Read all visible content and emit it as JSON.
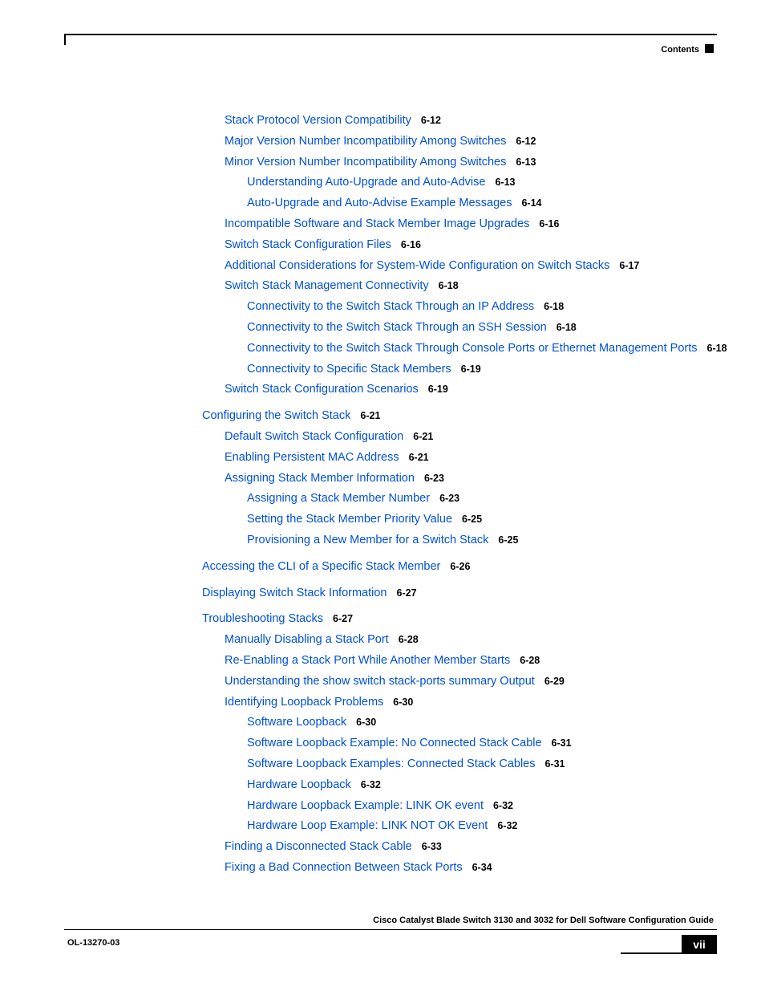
{
  "header": {
    "label": "Contents"
  },
  "toc": [
    {
      "lvl": 1,
      "t": "Stack Protocol Version Compatibility",
      "p": "6-12"
    },
    {
      "lvl": 1,
      "t": "Major Version Number Incompatibility Among Switches",
      "p": "6-12"
    },
    {
      "lvl": 1,
      "t": "Minor Version Number Incompatibility Among Switches",
      "p": "6-13"
    },
    {
      "lvl": 2,
      "t": "Understanding Auto-Upgrade and Auto-Advise",
      "p": "6-13"
    },
    {
      "lvl": 2,
      "t": "Auto-Upgrade and Auto-Advise Example Messages",
      "p": "6-14"
    },
    {
      "lvl": 1,
      "t": "Incompatible Software and Stack Member Image Upgrades",
      "p": "6-16"
    },
    {
      "lvl": 1,
      "t": "Switch Stack Configuration Files",
      "p": "6-16"
    },
    {
      "lvl": 1,
      "t": "Additional Considerations for System-Wide Configuration on Switch Stacks",
      "p": "6-17"
    },
    {
      "lvl": 1,
      "t": "Switch Stack Management Connectivity",
      "p": "6-18"
    },
    {
      "lvl": 2,
      "t": "Connectivity to the Switch Stack Through an IP Address",
      "p": "6-18"
    },
    {
      "lvl": 2,
      "t": "Connectivity to the Switch Stack Through an SSH Session",
      "p": "6-18"
    },
    {
      "lvl": 2,
      "t": "Connectivity to the Switch Stack Through Console Ports or Ethernet Management Ports",
      "p": "6-18"
    },
    {
      "lvl": 2,
      "t": "Connectivity to Specific Stack Members",
      "p": "6-19"
    },
    {
      "lvl": 1,
      "t": "Switch Stack Configuration Scenarios",
      "p": "6-19"
    },
    {
      "lvl": 0,
      "t": "Configuring the Switch Stack",
      "p": "6-21"
    },
    {
      "lvl": 1,
      "t": "Default Switch Stack Configuration",
      "p": "6-21"
    },
    {
      "lvl": 1,
      "t": "Enabling Persistent MAC Address",
      "p": "6-21"
    },
    {
      "lvl": 1,
      "t": "Assigning Stack Member Information",
      "p": "6-23"
    },
    {
      "lvl": 2,
      "t": "Assigning a Stack Member Number",
      "p": "6-23"
    },
    {
      "lvl": 2,
      "t": "Setting the Stack Member Priority Value",
      "p": "6-25"
    },
    {
      "lvl": 2,
      "t": "Provisioning a New Member for a Switch Stack",
      "p": "6-25"
    },
    {
      "lvl": 0,
      "t": "Accessing the CLI of a Specific Stack Member",
      "p": "6-26"
    },
    {
      "lvl": 0,
      "t": "Displaying Switch Stack Information",
      "p": "6-27"
    },
    {
      "lvl": 0,
      "t": "Troubleshooting Stacks",
      "p": "6-27"
    },
    {
      "lvl": 1,
      "t": "Manually Disabling a Stack Port",
      "p": "6-28"
    },
    {
      "lvl": 1,
      "t": "Re-Enabling a Stack Port While Another Member Starts",
      "p": "6-28"
    },
    {
      "lvl": 1,
      "t": "Understanding the show switch stack-ports summary Output",
      "p": "6-29"
    },
    {
      "lvl": 1,
      "t": "Identifying Loopback Problems",
      "p": "6-30"
    },
    {
      "lvl": 2,
      "t": "Software Loopback",
      "p": "6-30"
    },
    {
      "lvl": 2,
      "t": "Software Loopback Example: No Connected Stack Cable",
      "p": "6-31"
    },
    {
      "lvl": 2,
      "t": "Software Loopback Examples: Connected Stack Cables",
      "p": "6-31"
    },
    {
      "lvl": 2,
      "t": "Hardware Loopback",
      "p": "6-32"
    },
    {
      "lvl": 2,
      "t": "Hardware Loopback Example: LINK OK event",
      "p": "6-32"
    },
    {
      "lvl": 2,
      "t": "Hardware Loop Example: LINK NOT OK Event",
      "p": "6-32"
    },
    {
      "lvl": 1,
      "t": "Finding a Disconnected Stack Cable",
      "p": "6-33"
    },
    {
      "lvl": 1,
      "t": "Fixing a Bad Connection Between Stack Ports",
      "p": "6-34"
    }
  ],
  "footer": {
    "title": "Cisco Catalyst Blade Switch 3130 and 3032 for Dell Software Configuration Guide",
    "doc": "OL-13270-03",
    "pagenum": "vii"
  }
}
